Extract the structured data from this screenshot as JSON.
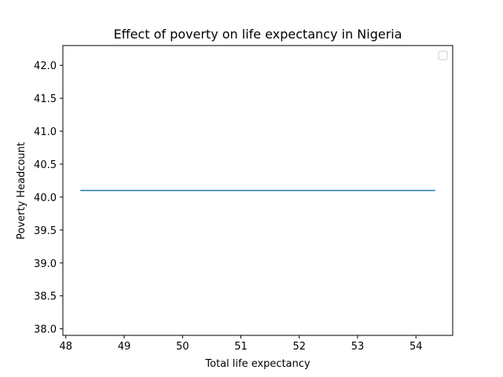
{
  "chart_data": {
    "type": "line",
    "title": "Effect of poverty on life expectancy in Nigeria",
    "xlabel": "Total life expectancy",
    "ylabel": "Poverty Headcount",
    "xlim": [
      47.95,
      54.63
    ],
    "ylim": [
      37.9,
      42.3
    ],
    "xticks": [
      48,
      49,
      50,
      51,
      52,
      53,
      54
    ],
    "xtick_labels": [
      "48",
      "49",
      "50",
      "51",
      "52",
      "53",
      "54"
    ],
    "yticks": [
      38.0,
      38.5,
      39.0,
      39.5,
      40.0,
      40.5,
      41.0,
      41.5,
      42.0
    ],
    "ytick_labels": [
      "38.0",
      "38.5",
      "39.0",
      "39.5",
      "40.0",
      "40.5",
      "41.0",
      "41.5",
      "42.0"
    ],
    "grid": false,
    "legend": {
      "location": "top-right",
      "entries": []
    },
    "series": [
      {
        "color": "#1f77b4",
        "x": [
          48.25,
          54.33
        ],
        "y": [
          40.1,
          40.1
        ]
      }
    ]
  }
}
